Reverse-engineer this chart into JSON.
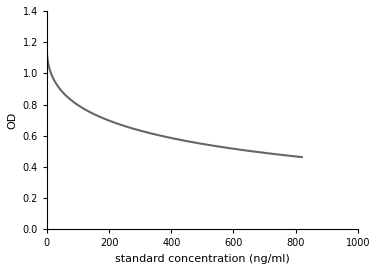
{
  "xlabel": "standard concentration (ng/ml)",
  "ylabel": "OD",
  "xlim": [
    0,
    1000
  ],
  "ylim": [
    0,
    1.4
  ],
  "xticks": [
    0,
    200,
    400,
    600,
    800,
    1000
  ],
  "yticks": [
    0,
    0.2,
    0.4,
    0.6,
    0.8,
    1.0,
    1.2,
    1.4
  ],
  "curve_color": "#666666",
  "line_width": 1.5,
  "background_color": "#ffffff",
  "curve_a": 0.09,
  "curve_b": 1.11,
  "curve_k": 0.065,
  "curve_n": 0.42
}
